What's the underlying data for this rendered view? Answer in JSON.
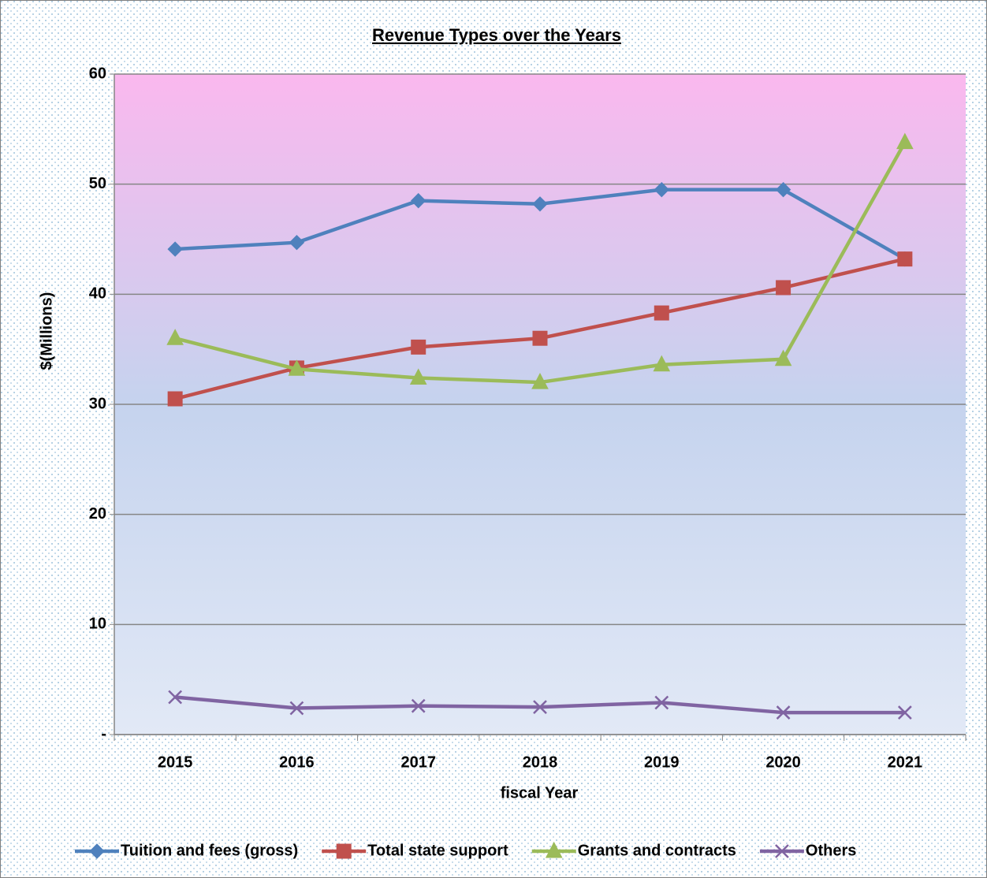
{
  "chart_data": {
    "type": "line",
    "title": "Revenue Types over the Years",
    "x_label": "fiscal Year",
    "y_label": "$(Millions)",
    "categories": [
      "2015",
      "2016",
      "2017",
      "2018",
      "2019",
      "2020",
      "2021"
    ],
    "ylim": [
      0,
      60
    ],
    "yticks": [
      {
        "value": 0,
        "label": "-"
      },
      10,
      20,
      30,
      40,
      50,
      60
    ],
    "grid": true,
    "legend": "bottom",
    "series": [
      {
        "name": "Tuition and fees (gross)",
        "color": "#4f81bd",
        "marker": "diamond",
        "values": [
          44.1,
          44.7,
          48.5,
          48.2,
          49.5,
          49.5,
          43.2
        ]
      },
      {
        "name": "Total state support",
        "color": "#c0504d",
        "marker": "square",
        "values": [
          30.5,
          33.3,
          35.2,
          36.0,
          38.3,
          40.6,
          43.2
        ]
      },
      {
        "name": "Grants and contracts",
        "color": "#9bbb59",
        "marker": "triangle",
        "values": [
          36.0,
          33.2,
          32.4,
          32.0,
          33.6,
          34.1,
          53.8
        ]
      },
      {
        "name": "Others",
        "color": "#8064a2",
        "marker": "x",
        "values": [
          3.4,
          2.4,
          2.6,
          2.5,
          2.9,
          2.0,
          2.0
        ]
      }
    ]
  }
}
